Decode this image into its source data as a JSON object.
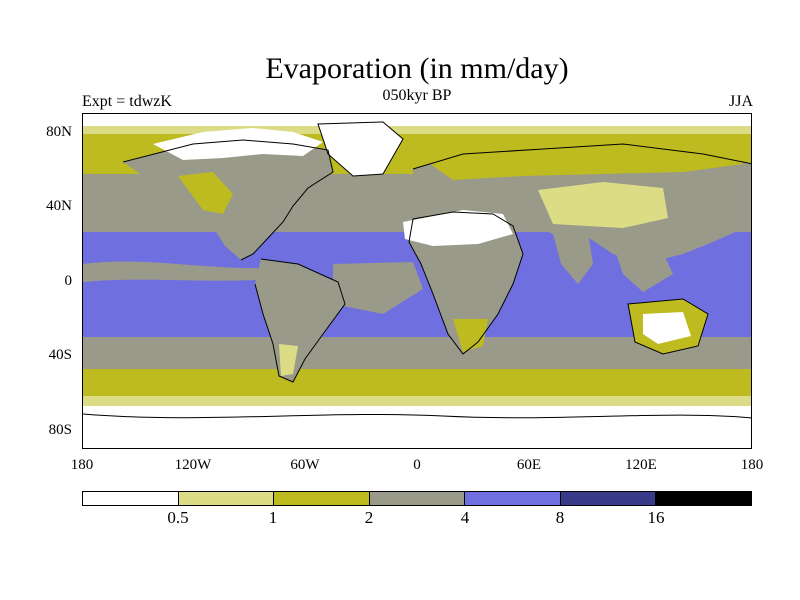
{
  "header": {
    "title": "Evaporation (in mm/day)",
    "subtitle": "050kyr BP",
    "experiment": "Expt = tdwzK",
    "season": "JJA"
  },
  "axes": {
    "lat_labels": [
      "80N",
      "40N",
      "0",
      "40S",
      "80S"
    ],
    "lon_labels": [
      "180",
      "120W",
      "60W",
      "0",
      "60E",
      "120E",
      "180"
    ]
  },
  "colorbar": {
    "colors": [
      "#ffffff",
      "#dcdc86",
      "#bdbb20",
      "#9a9a8a",
      "#6f6fe0",
      "#3a3a8a",
      "#000000"
    ],
    "labels": [
      "0.5",
      "1",
      "2",
      "4",
      "8",
      "16"
    ]
  },
  "legend": {
    "white": "#ffffff",
    "pale_yellow": "#dcdc86",
    "olive": "#bdbb20",
    "gray": "#9a9a8a",
    "blue": "#6f6fe0",
    "dark_blue": "#3a3a8a"
  }
}
